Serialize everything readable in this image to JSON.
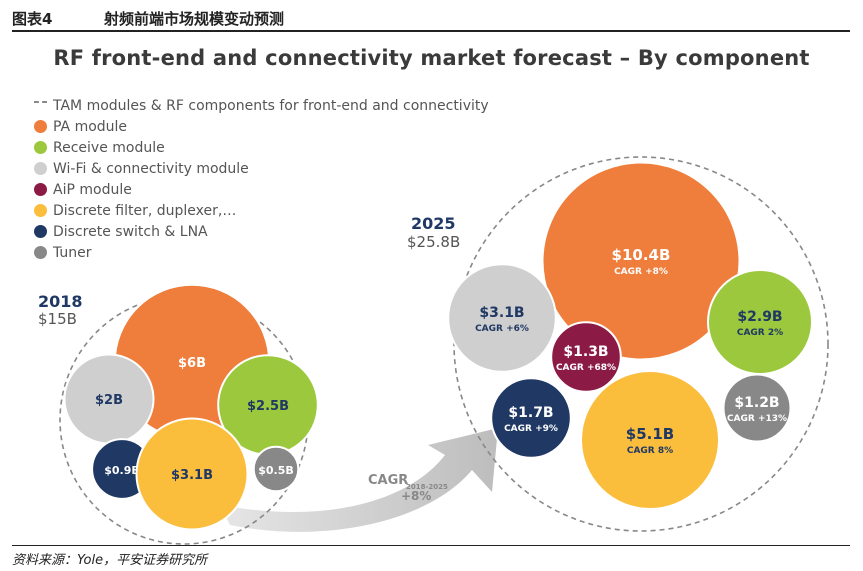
{
  "header": {
    "figure_label": "图表4",
    "figure_title": "射频前端市场规模变动预测"
  },
  "legend": {
    "tam": "TAM modules & RF components for front-end and connectivity",
    "items": [
      {
        "label": "PA module",
        "color": "#ef7d3c"
      },
      {
        "label": "Receive module",
        "color": "#9bc83c"
      },
      {
        "label": "Wi-Fi & connectivity module",
        "color": "#cfcfcf"
      },
      {
        "label": "AiP module",
        "color": "#8b1a45"
      },
      {
        "label": "Discrete filter, duplexer,…",
        "color": "#fbbd3c"
      },
      {
        "label": "Discrete switch & LNA",
        "color": "#1f3864"
      },
      {
        "label": "Tuner",
        "color": "#888888"
      }
    ]
  },
  "chart_data": {
    "type": "bubble",
    "title": "RF front-end and connectivity market forecast – By component",
    "unit": "$B",
    "groups": [
      {
        "year": "2018",
        "total_label": "$15B",
        "total": 15,
        "bubbles": [
          {
            "component": "PA module",
            "label": "$6B",
            "value": 6
          },
          {
            "component": "Wi-Fi & connectivity module",
            "label": "$2B",
            "value": 2
          },
          {
            "component": "Receive module",
            "label": "$2.5B",
            "value": 2.5
          },
          {
            "component": "Discrete switch & LNA",
            "label": "$0.9B",
            "value": 0.9
          },
          {
            "component": "Discrete filter, duplexer,…",
            "label": "$3.1B",
            "value": 3.1
          },
          {
            "component": "Tuner",
            "label": "$0.5B",
            "value": 0.5
          }
        ]
      },
      {
        "year": "2025",
        "total_label": "$25.8B",
        "total": 25.8,
        "bubbles": [
          {
            "component": "PA module",
            "label": "$10.4B",
            "value": 10.4,
            "cagr": "CAGR +8%"
          },
          {
            "component": "Wi-Fi & connectivity module",
            "label": "$3.1B",
            "value": 3.1,
            "cagr": "CAGR +6%"
          },
          {
            "component": "Receive module",
            "label": "$2.9B",
            "value": 2.9,
            "cagr": "CAGR 2%"
          },
          {
            "component": "AiP module",
            "label": "$1.3B",
            "value": 1.3,
            "cagr": "CAGR +68%"
          },
          {
            "component": "Discrete switch & LNA",
            "label": "$1.7B",
            "value": 1.7,
            "cagr": "CAGR +9%"
          },
          {
            "component": "Discrete filter, duplexer,…",
            "label": "$5.1B",
            "value": 5.1,
            "cagr": "CAGR 8%"
          },
          {
            "component": "Tuner",
            "label": "$1.2B",
            "value": 1.2,
            "cagr": "CAGR +13%"
          }
        ]
      }
    ],
    "overall_cagr": {
      "label": "CAGR",
      "period": "2018-2025",
      "value": "+8%"
    }
  },
  "footer": {
    "source": "资料来源：Yole，平安证券研究所"
  }
}
